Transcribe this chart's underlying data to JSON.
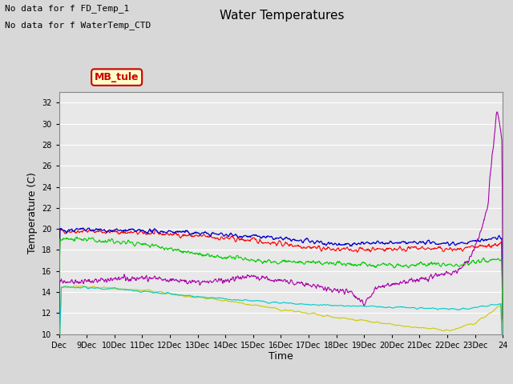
{
  "title": "Water Temperatures",
  "ylabel": "Temperature (C)",
  "xlabel": "Time",
  "annotations": [
    "No data for f FD_Temp_1",
    "No data for f WaterTemp_CTD"
  ],
  "mb_tule_label": "MB_tule",
  "ylim": [
    10,
    33
  ],
  "yticks": [
    10,
    12,
    14,
    16,
    18,
    20,
    22,
    24,
    26,
    28,
    30,
    32
  ],
  "n_points": 960,
  "series": {
    "FR_temp_A": {
      "color": "#ff0000",
      "lw": 0.8
    },
    "FR_temp_B": {
      "color": "#0000cc",
      "lw": 0.9
    },
    "FR_temp_C": {
      "color": "#00cc00",
      "lw": 0.8
    },
    "WaterT": {
      "color": "#cccc00",
      "lw": 0.8
    },
    "CondTemp": {
      "color": "#aa00aa",
      "lw": 0.8
    },
    "MDTemp_A": {
      "color": "#00cccc",
      "lw": 0.8
    }
  },
  "xtick_labels": [
    "Dec",
    "9Dec",
    "10Dec",
    "11Dec",
    "12Dec",
    "13Dec",
    "14Dec",
    "15Dec",
    "16Dec",
    "17Dec",
    "18Dec",
    "19Dec",
    "20Dec",
    "21Dec",
    "22Dec",
    "23Dec",
    "24"
  ],
  "bg_color": "#d8d8d8",
  "ax_bg_color": "#e8e8e8",
  "title_fontsize": 11,
  "tick_fontsize": 7,
  "label_fontsize": 9
}
